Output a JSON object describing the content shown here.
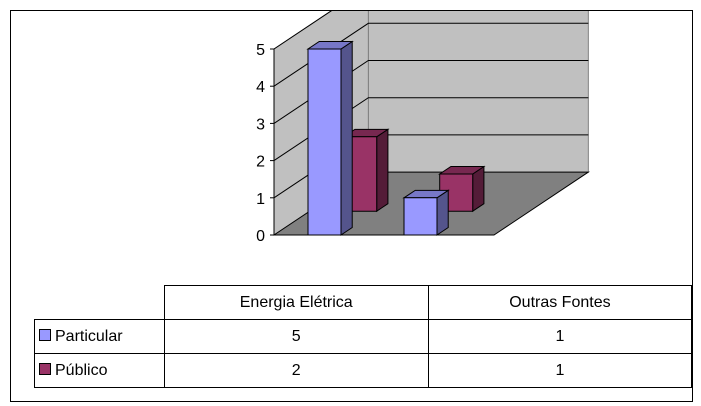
{
  "chart_data": {
    "type": "bar",
    "style": "3d-clustered-column",
    "categories": [
      "Energia Elétrica",
      "Outras Fontes"
    ],
    "series": [
      {
        "name": "Particular",
        "values": [
          5,
          1
        ],
        "color": "#9999FF"
      },
      {
        "name": "Público",
        "values": [
          2,
          1
        ],
        "color": "#993366"
      }
    ],
    "yticks": [
      "0",
      "1",
      "2",
      "3",
      "4",
      "5"
    ],
    "ylim": [
      0,
      5
    ],
    "grid": true,
    "legend": "data-table-below",
    "colors": {
      "wall": "#C0C0C0",
      "floor": "#808080"
    }
  }
}
